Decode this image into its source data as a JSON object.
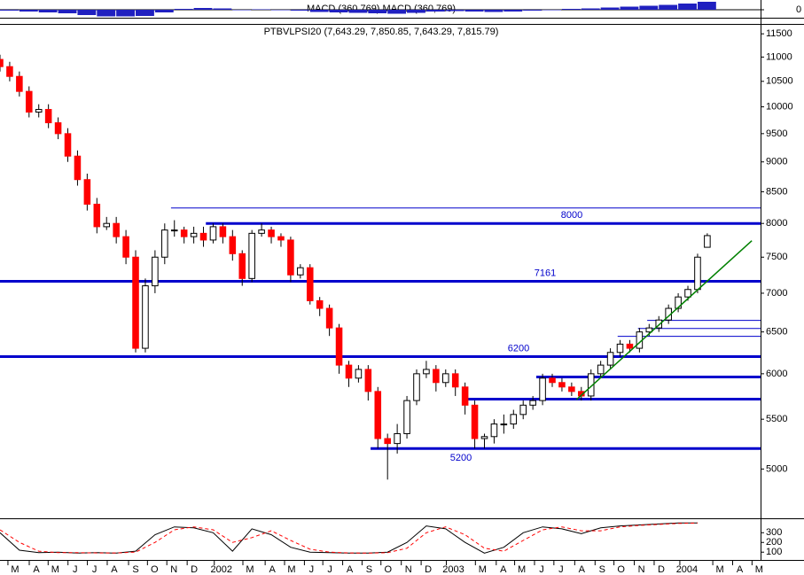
{
  "chart_data": [
    {
      "type": "bar",
      "title": "MACD (360,769) MACD (360,769)",
      "color": "#2020c0",
      "x": [
        0,
        4,
        8,
        12,
        16,
        20,
        24,
        28,
        32,
        36,
        40,
        44,
        48,
        52,
        56,
        60,
        64,
        68,
        72,
        76,
        80,
        84,
        88,
        92,
        96,
        100,
        104,
        108,
        112,
        116,
        120,
        124,
        128,
        132,
        136,
        140,
        144
      ],
      "values": [
        -100,
        -200,
        -300,
        -400,
        -600,
        -750,
        -750,
        -700,
        -300,
        100,
        200,
        150,
        0,
        50,
        0,
        -100,
        -250,
        -300,
        -350,
        -400,
        -450,
        -350,
        -200,
        -150,
        -200,
        -250,
        -200,
        -100,
        0,
        100,
        150,
        250,
        350,
        450,
        550,
        700,
        900
      ],
      "xlim": [
        0,
        157
      ],
      "ylim": [
        -800,
        1000
      ],
      "yticks": [
        0
      ]
    },
    {
      "type": "candlestick",
      "title": "PTBVLPSI20 (7,643.29, 7,850.85, 7,643.29, 7,815.79)",
      "up_color": "#ffffff",
      "down_color": "#ff0000",
      "x": [
        0,
        2,
        4,
        6,
        8,
        10,
        12,
        14,
        16,
        18,
        20,
        22,
        24,
        26,
        28,
        30,
        32,
        34,
        36,
        38,
        40,
        42,
        44,
        46,
        48,
        50,
        52,
        54,
        56,
        58,
        60,
        62,
        64,
        66,
        68,
        70,
        72,
        74,
        76,
        78,
        80,
        82,
        84,
        86,
        88,
        90,
        92,
        94,
        96,
        98,
        100,
        102,
        104,
        106,
        108,
        110,
        112,
        114,
        116,
        118,
        120,
        122,
        124,
        126,
        128,
        130,
        132,
        134,
        136,
        138,
        140,
        142,
        144,
        146
      ],
      "open": [
        10950,
        10800,
        10600,
        10300,
        9900,
        9950,
        9700,
        9500,
        9100,
        8700,
        8300,
        7950,
        8000,
        7800,
        7500,
        6300,
        7100,
        7500,
        7900,
        7900,
        7800,
        7850,
        7750,
        7950,
        7800,
        7550,
        7200,
        7850,
        7900,
        7800,
        7750,
        7250,
        7350,
        6900,
        6800,
        6550,
        6100,
        5950,
        6050,
        5800,
        5300,
        5250,
        5350,
        5700,
        6000,
        6050,
        5900,
        6000,
        5850,
        5650,
        5300,
        5320,
        5450,
        5450,
        5550,
        5650,
        5700,
        5950,
        5900,
        5850,
        5800,
        5750,
        6000,
        6100,
        6250,
        6350,
        6300,
        6500,
        6550,
        6650,
        6800,
        6950,
        7050,
        7643.29
      ],
      "high": [
        11050,
        10900,
        10700,
        10400,
        10050,
        10050,
        9800,
        9600,
        9200,
        8800,
        8400,
        8100,
        8100,
        7900,
        7600,
        7200,
        7600,
        8000,
        8050,
        7950,
        7950,
        7950,
        8000,
        8000,
        7900,
        7600,
        7900,
        8000,
        7950,
        7850,
        7800,
        7400,
        7400,
        6950,
        6850,
        6600,
        6150,
        6100,
        6100,
        5850,
        5350,
        5450,
        5750,
        6050,
        6150,
        6100,
        6050,
        6050,
        5900,
        5700,
        5350,
        5500,
        5550,
        5600,
        5700,
        5750,
        6000,
        6000,
        5950,
        5900,
        5850,
        6050,
        6150,
        6300,
        6400,
        6400,
        6550,
        6600,
        6700,
        6850,
        7000,
        7100,
        7550,
        7850.85
      ],
      "low": [
        10700,
        10500,
        10200,
        9800,
        9800,
        9600,
        9400,
        9000,
        8600,
        8200,
        7850,
        7900,
        7700,
        7400,
        6250,
        6250,
        7000,
        7400,
        7800,
        7700,
        7700,
        7650,
        7700,
        7700,
        7450,
        7100,
        7150,
        7800,
        7700,
        7650,
        7150,
        7200,
        6850,
        6700,
        6450,
        6000,
        5850,
        5900,
        5700,
        5200,
        4900,
        5150,
        5300,
        5650,
        5950,
        5800,
        5850,
        5750,
        5550,
        5200,
        5200,
        5250,
        5350,
        5400,
        5500,
        5600,
        5650,
        5850,
        5800,
        5750,
        5700,
        5700,
        5950,
        6050,
        6200,
        6250,
        6250,
        6450,
        6500,
        6600,
        6750,
        6900,
        7000,
        7643.29
      ],
      "close": [
        10800,
        10600,
        10300,
        9900,
        9950,
        9700,
        9500,
        9100,
        8700,
        8300,
        7950,
        8000,
        7800,
        7500,
        6300,
        7100,
        7500,
        7900,
        7900,
        7800,
        7850,
        7750,
        7950,
        7800,
        7550,
        7200,
        7850,
        7900,
        7800,
        7750,
        7250,
        7350,
        6900,
        6800,
        6550,
        6100,
        5950,
        6050,
        5800,
        5300,
        5250,
        5350,
        5700,
        6000,
        6050,
        5900,
        6000,
        5850,
        5650,
        5300,
        5320,
        5450,
        5450,
        5550,
        5650,
        5700,
        5950,
        5900,
        5850,
        5800,
        5750,
        6000,
        6100,
        6250,
        6350,
        6300,
        6500,
        6550,
        6650,
        6800,
        6950,
        7050,
        7500,
        7815.79
      ],
      "xlim": [
        0,
        157
      ],
      "ylim": [
        4550,
        11700
      ],
      "log_scale": true,
      "yticks": [
        5000,
        5500,
        6000,
        6500,
        7000,
        7500,
        8000,
        8500,
        9000,
        9500,
        10000,
        10500,
        11000,
        11500
      ],
      "level_color": "#0000cc",
      "levels": [
        {
          "value": 8000,
          "label": "8000",
          "start": 42.5,
          "style": "thick"
        },
        {
          "value": 7161,
          "label": "7161",
          "start": 0,
          "style": "thick"
        },
        {
          "value": 6200,
          "label": "6200",
          "start": 0,
          "style": "thick"
        },
        {
          "value": 5200,
          "label": "5200",
          "start": 76.5,
          "style": "thick"
        },
        {
          "value": 5963,
          "start": 110.7,
          "style": "thick"
        },
        {
          "value": 5715,
          "start": 95.9,
          "style": "thick"
        },
        {
          "value": 8240,
          "start": 35.3,
          "style": "thin"
        },
        {
          "value": 6446,
          "start": 127.5,
          "style": "thin"
        },
        {
          "value": 6543,
          "start": 131.7,
          "style": "thin"
        },
        {
          "value": 6645,
          "start": 133.6,
          "style": "thin"
        }
      ],
      "trend_line": {
        "color": "#008000",
        "x": [
          119,
          155.2
        ],
        "values": [
          5710,
          7740
        ]
      }
    },
    {
      "type": "line",
      "x": [
        0,
        4,
        8,
        12,
        16,
        20,
        24,
        28,
        32,
        36,
        40,
        44,
        48,
        52,
        56,
        60,
        64,
        68,
        72,
        76,
        80,
        84,
        88,
        92,
        96,
        100,
        104,
        108,
        112,
        116,
        120,
        124,
        128,
        132,
        136,
        140,
        144
      ],
      "series": [
        {
          "color": "#000000",
          "values": [
            300,
            120,
            95,
            100,
            90,
            95,
            90,
            110,
            280,
            360,
            350,
            300,
            110,
            340,
            280,
            150,
            100,
            95,
            90,
            90,
            100,
            200,
            370,
            340,
            200,
            90,
            150,
            300,
            360,
            340,
            290,
            350,
            370,
            380,
            390,
            400,
            400
          ]
        },
        {
          "color": "#ff0000",
          "dashed": true,
          "values": [
            330,
            200,
            110,
            95,
            95,
            92,
            92,
            100,
            200,
            330,
            360,
            330,
            200,
            250,
            320,
            220,
            130,
            100,
            92,
            90,
            95,
            140,
            300,
            360,
            280,
            140,
            110,
            220,
            330,
            360,
            320,
            320,
            360,
            375,
            385,
            395,
            400
          ]
        }
      ],
      "xlim": [
        0,
        157
      ],
      "ylim": [
        20,
        430
      ],
      "yticks": [
        100,
        200,
        300
      ],
      "xticks": [
        {
          "value": 3.1,
          "label": "M"
        },
        {
          "value": 7.5,
          "label": "A"
        },
        {
          "value": 11.4,
          "label": "M"
        },
        {
          "value": 15.5,
          "label": "J"
        },
        {
          "value": 19.5,
          "label": "J"
        },
        {
          "value": 23.6,
          "label": "A"
        },
        {
          "value": 28,
          "label": "S"
        },
        {
          "value": 31.9,
          "label": "O"
        },
        {
          "value": 35.9,
          "label": "N"
        },
        {
          "value": 40.1,
          "label": "D"
        },
        {
          "value": 45.7,
          "label": "2002"
        },
        {
          "value": 51.6,
          "label": "M"
        },
        {
          "value": 56.2,
          "label": "A"
        },
        {
          "value": 60.2,
          "label": "M"
        },
        {
          "value": 64.3,
          "label": "J"
        },
        {
          "value": 68.1,
          "label": "J"
        },
        {
          "value": 72.2,
          "label": "A"
        },
        {
          "value": 76.2,
          "label": "S"
        },
        {
          "value": 80.1,
          "label": "O"
        },
        {
          "value": 84.3,
          "label": "N"
        },
        {
          "value": 88.4,
          "label": "D"
        },
        {
          "value": 93.6,
          "label": "2003"
        },
        {
          "value": 99.6,
          "label": "M"
        },
        {
          "value": 103.9,
          "label": "A"
        },
        {
          "value": 107.7,
          "label": "M"
        },
        {
          "value": 111.8,
          "label": "J"
        },
        {
          "value": 115.8,
          "label": "J"
        },
        {
          "value": 120.1,
          "label": "A"
        },
        {
          "value": 124.3,
          "label": "S"
        },
        {
          "value": 128.2,
          "label": "O"
        },
        {
          "value": 132.4,
          "label": "N"
        },
        {
          "value": 136.5,
          "label": "D"
        },
        {
          "value": 141.8,
          "label": "2004"
        },
        {
          "value": 148.6,
          "label": "M"
        },
        {
          "value": 152.7,
          "label": "A"
        },
        {
          "value": 156.7,
          "label": "M"
        }
      ]
    }
  ]
}
